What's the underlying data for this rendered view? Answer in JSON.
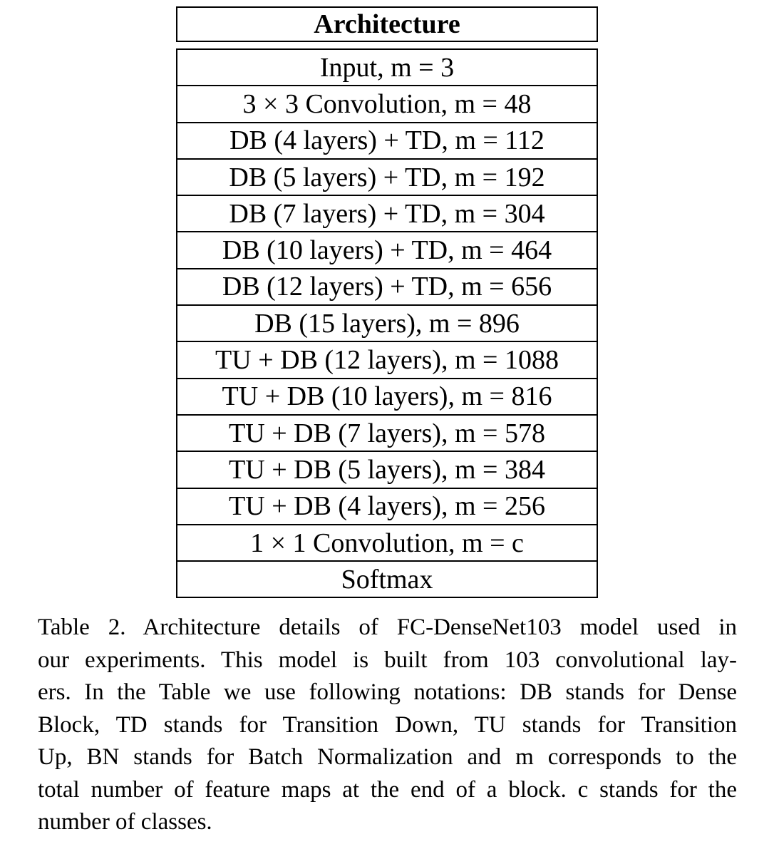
{
  "table": {
    "header": "Architecture",
    "rows": [
      "Input, m = 3",
      "3 × 3 Convolution, m = 48",
      "DB (4 layers) + TD, m = 112",
      "DB (5 layers) + TD, m = 192",
      "DB (7 layers) + TD, m = 304",
      "DB (10 layers) + TD, m = 464",
      "DB (12 layers) + TD, m = 656",
      "DB (15 layers), m = 896",
      "TU + DB (12 layers), m = 1088",
      "TU + DB (10 layers), m = 816",
      "TU + DB (7 layers), m = 578",
      "TU + DB (5 layers), m = 384",
      "TU + DB (4 layers), m = 256",
      "1 × 1 Convolution, m = c",
      "Softmax"
    ]
  },
  "caption": {
    "lines": [
      "Table 2. Architecture details of FC-DenseNet103 model used in",
      "our experiments. This model is built from 103 convolutional lay-",
      "ers. In the Table we use following notations: DB stands for Dense",
      "Block, TD stands for Transition Down, TU stands for Transition",
      "Up, BN stands for Batch Normalization and m corresponds to the",
      "total number of feature maps at the end of a block. c stands for the",
      "number of classes."
    ]
  }
}
